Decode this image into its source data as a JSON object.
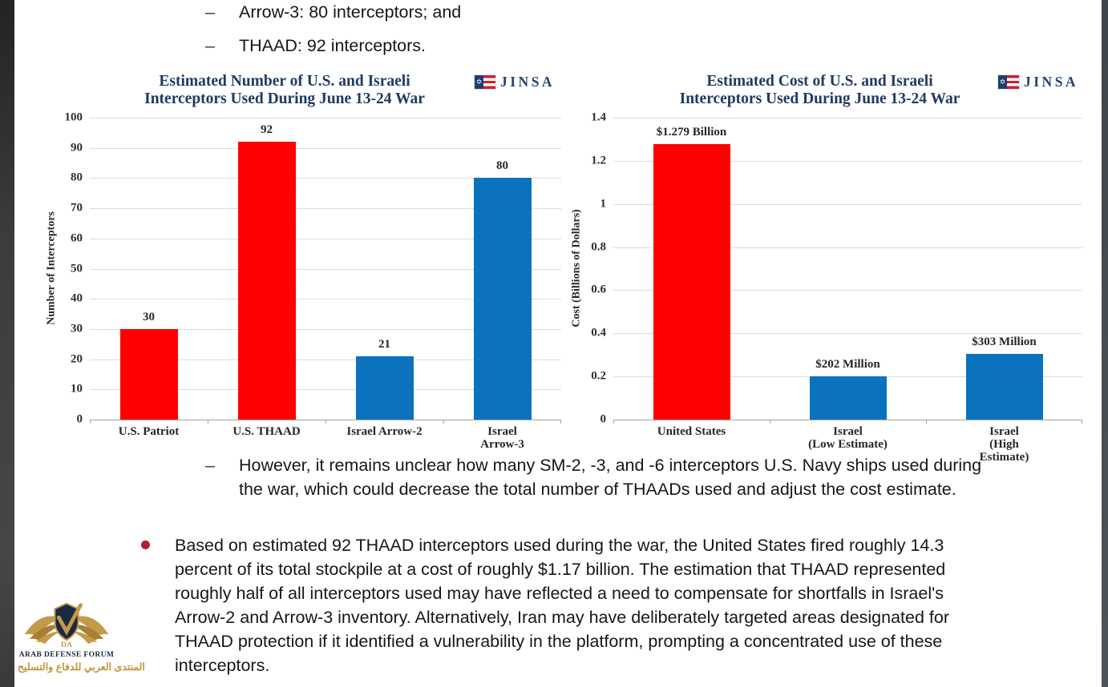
{
  "page": {
    "top_bullets": [
      {
        "marker": "–",
        "text": "Arrow-3: 80 interceptors; and"
      },
      {
        "marker": "–",
        "text": "THAAD: 92 interceptors."
      }
    ],
    "sub_bullet": {
      "marker": "–",
      "text": "However, it remains unclear how many SM-2, -3, and -6 interceptors U.S. Navy ships used during the war, which could decrease the total number of THAADs used and adjust the cost estimate."
    },
    "main_bullet": {
      "text": "Based on estimated 92 THAAD interceptors used during the war, the United States fired roughly 14.3 percent of its total stockpile at a cost of roughly $1.17 billion. The estimation that THAAD represented roughly half of all interceptors used may have reflected a need to compensate for shortfalls in Israel's Arrow-2 and Arrow-3 inventory. Alternatively, Iran may have deliberately targeted areas designated for THAAD protection if it identified a vulnerability in the platform, prompting a concentrated use of these interceptors."
    }
  },
  "branding": {
    "jinsa_label": "JINSA",
    "flag_star": "✡"
  },
  "watermark": {
    "initials": "DA",
    "name": "ARAB DEFENSE FORUM",
    "arabic": "المنتدى العربي للدفاع والتسليح"
  },
  "colors": {
    "red": "#fe0000",
    "blue": "#0b72be",
    "navy": "#1f3a63",
    "bullet_red": "#b01e2e"
  },
  "chart_data": [
    {
      "type": "bar",
      "title": "Estimated Number of U.S. and Israeli\nInterceptors Used During June 13-24 War",
      "categories": [
        "U.S. Patriot",
        "U.S. THAAD",
        "Israel Arrow-2",
        "Israel Arrow-3"
      ],
      "values": [
        30,
        92,
        21,
        80
      ],
      "value_labels": [
        "30",
        "92",
        "21",
        "80"
      ],
      "bar_colors": [
        "red",
        "red",
        "blue",
        "blue"
      ],
      "xlabel": "",
      "ylabel": "Number of Interceptors",
      "ylim": [
        0,
        100
      ],
      "yticks": [
        0,
        10,
        20,
        30,
        40,
        50,
        60,
        70,
        80,
        90,
        100
      ],
      "ytick_labels": [
        "0",
        "10",
        "20",
        "30",
        "40",
        "50",
        "60",
        "70",
        "80",
        "90",
        "100"
      ],
      "grid": true,
      "legend": false
    },
    {
      "type": "bar",
      "title": "Estimated Cost of U.S. and Israeli\nInterceptors Used During June 13-24 War",
      "categories": [
        "United States",
        "Israel\n(Low Estimate)",
        "Israel\n(High Estimate)"
      ],
      "values": [
        1.279,
        0.202,
        0.303
      ],
      "value_labels": [
        "$1.279 Billion",
        "$202 Million",
        "$303 Million"
      ],
      "bar_colors": [
        "red",
        "blue",
        "blue"
      ],
      "xlabel": "",
      "ylabel": "Cost (Billions of Dollars)",
      "ylim": [
        0,
        1.4
      ],
      "yticks": [
        0,
        0.2,
        0.4,
        0.6,
        0.8,
        1,
        1.2,
        1.4
      ],
      "ytick_labels": [
        "0",
        "0.2",
        "0.4",
        "0.6",
        "0.8",
        "1",
        "1.2",
        "1.4"
      ],
      "grid": true,
      "legend": false
    }
  ]
}
